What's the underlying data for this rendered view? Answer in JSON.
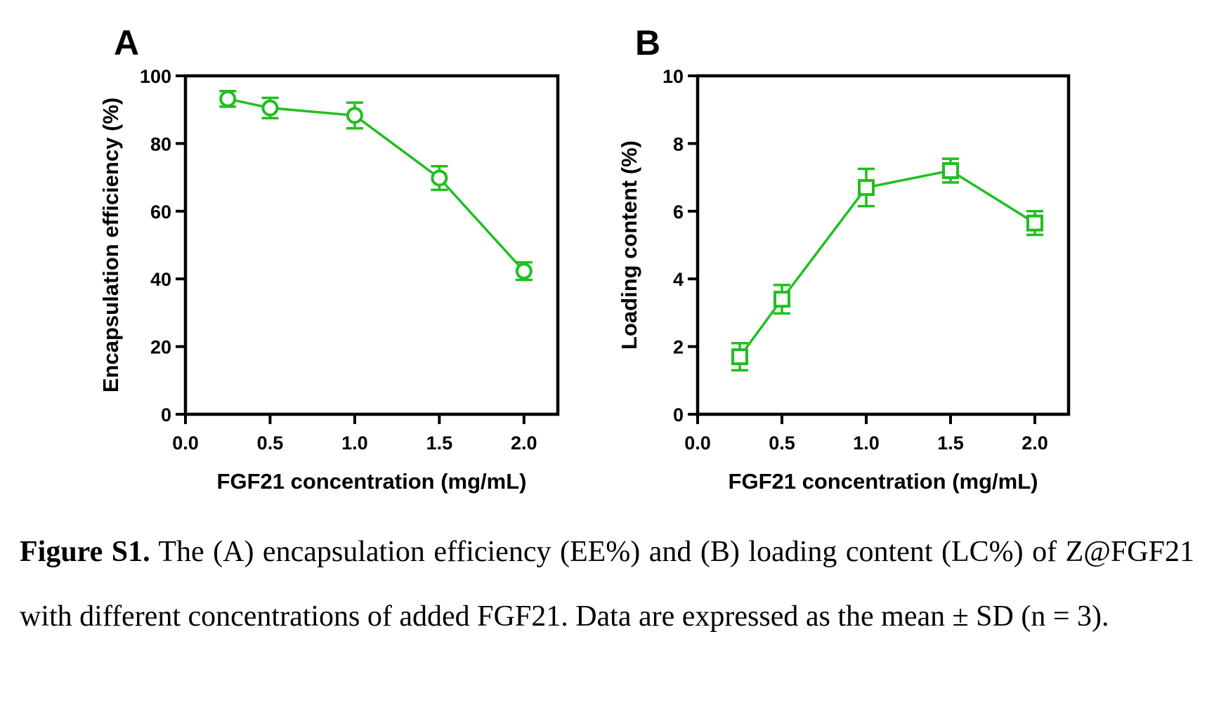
{
  "colors": {
    "series": "#1fbf1f",
    "axis": "#000000"
  },
  "chart_data": [
    {
      "panel": "A",
      "type": "line",
      "marker": "circle",
      "xlabel": "FGF21 concentration (mg/mL)",
      "ylabel": "Encapsulation efficiency (%)",
      "xlim": [
        0,
        2.2
      ],
      "ylim": [
        0,
        100
      ],
      "xticks": [
        "0.0",
        "0.5",
        "1.0",
        "1.5",
        "2.0"
      ],
      "xtick_values": [
        0,
        0.5,
        1.0,
        1.5,
        2.0
      ],
      "yticks": [
        "0",
        "20",
        "40",
        "60",
        "80",
        "100"
      ],
      "ytick_values": [
        0,
        20,
        40,
        60,
        80,
        100
      ],
      "x": [
        0.25,
        0.5,
        1.0,
        1.5,
        2.0
      ],
      "y": [
        93.2,
        90.5,
        88.3,
        69.8,
        42.3
      ],
      "sd": [
        2.3,
        3.0,
        3.8,
        3.5,
        2.6
      ]
    },
    {
      "panel": "B",
      "type": "line",
      "marker": "square",
      "xlabel": "FGF21 concentration (mg/mL)",
      "ylabel": "Loading content (%)",
      "xlim": [
        0,
        2.2
      ],
      "ylim": [
        0,
        10
      ],
      "xticks": [
        "0.0",
        "0.5",
        "1.0",
        "1.5",
        "2.0"
      ],
      "xtick_values": [
        0,
        0.5,
        1.0,
        1.5,
        2.0
      ],
      "yticks": [
        "0",
        "2",
        "4",
        "6",
        "8",
        "10"
      ],
      "ytick_values": [
        0,
        2,
        4,
        6,
        8,
        10
      ],
      "x": [
        0.25,
        0.5,
        1.0,
        1.5,
        2.0
      ],
      "y": [
        1.7,
        3.4,
        6.7,
        7.2,
        5.65
      ],
      "sd": [
        0.4,
        0.42,
        0.55,
        0.35,
        0.35
      ]
    }
  ],
  "caption": {
    "label": "Figure S1.",
    "text": " The (A) encapsulation efficiency (EE%) and (B) loading content (LC%) of Z@FGF21 with different concentrations of added FGF21. Data are expressed as the mean ± SD (n = 3)."
  }
}
